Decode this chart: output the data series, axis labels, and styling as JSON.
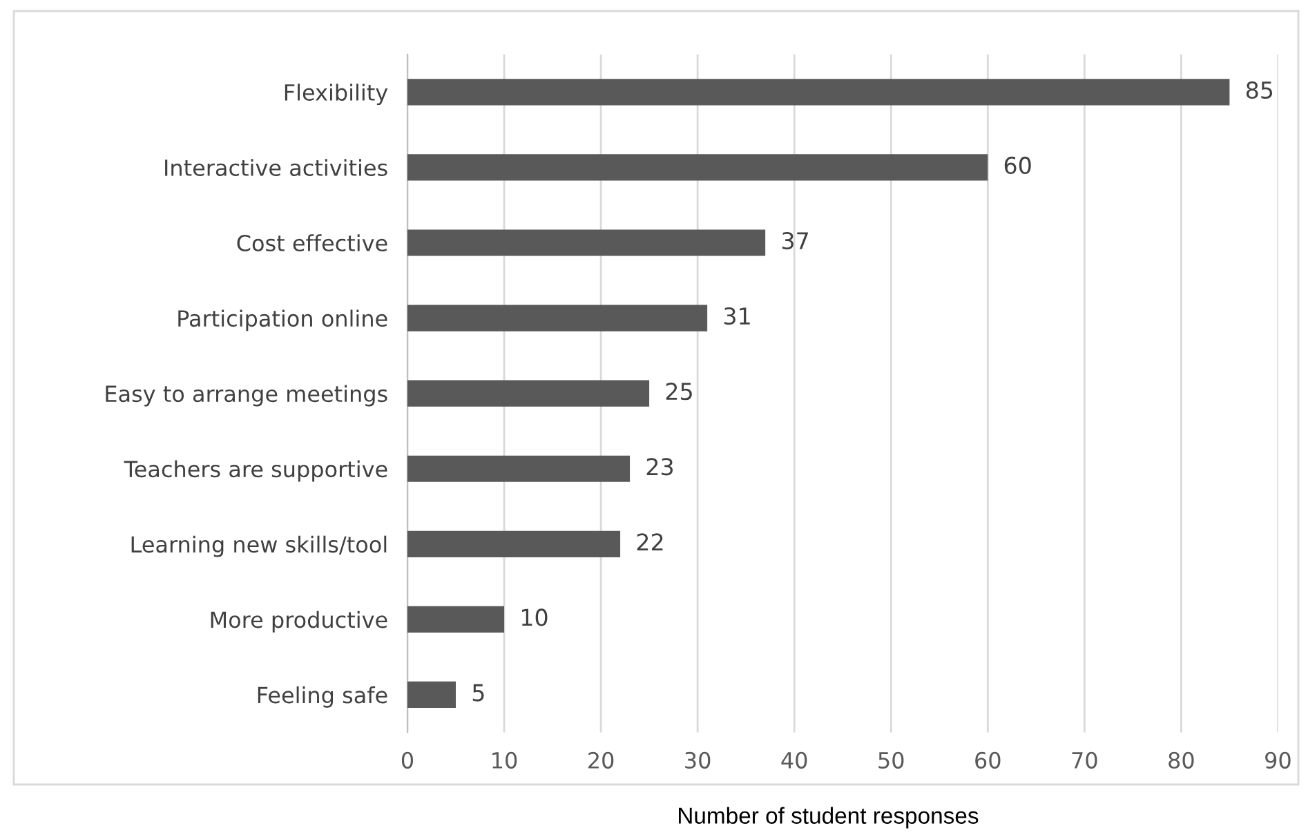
{
  "chart_data": {
    "type": "bar",
    "orientation": "horizontal",
    "xlabel": "Number of student responses",
    "categories": [
      "Flexibility",
      "Interactive activities",
      "Cost effective",
      "Participation online",
      "Easy to arrange meetings",
      "Teachers are supportive",
      "Learning new skills/tool",
      "More productive",
      "Feeling safe"
    ],
    "values": [
      85,
      60,
      37,
      31,
      25,
      23,
      22,
      10,
      5
    ],
    "color": "#595959",
    "xlim": [
      0,
      90
    ],
    "xticks": [
      0,
      10,
      20,
      30,
      40,
      50,
      60,
      70,
      80,
      90
    ],
    "grid": "x",
    "data_labels": true
  }
}
